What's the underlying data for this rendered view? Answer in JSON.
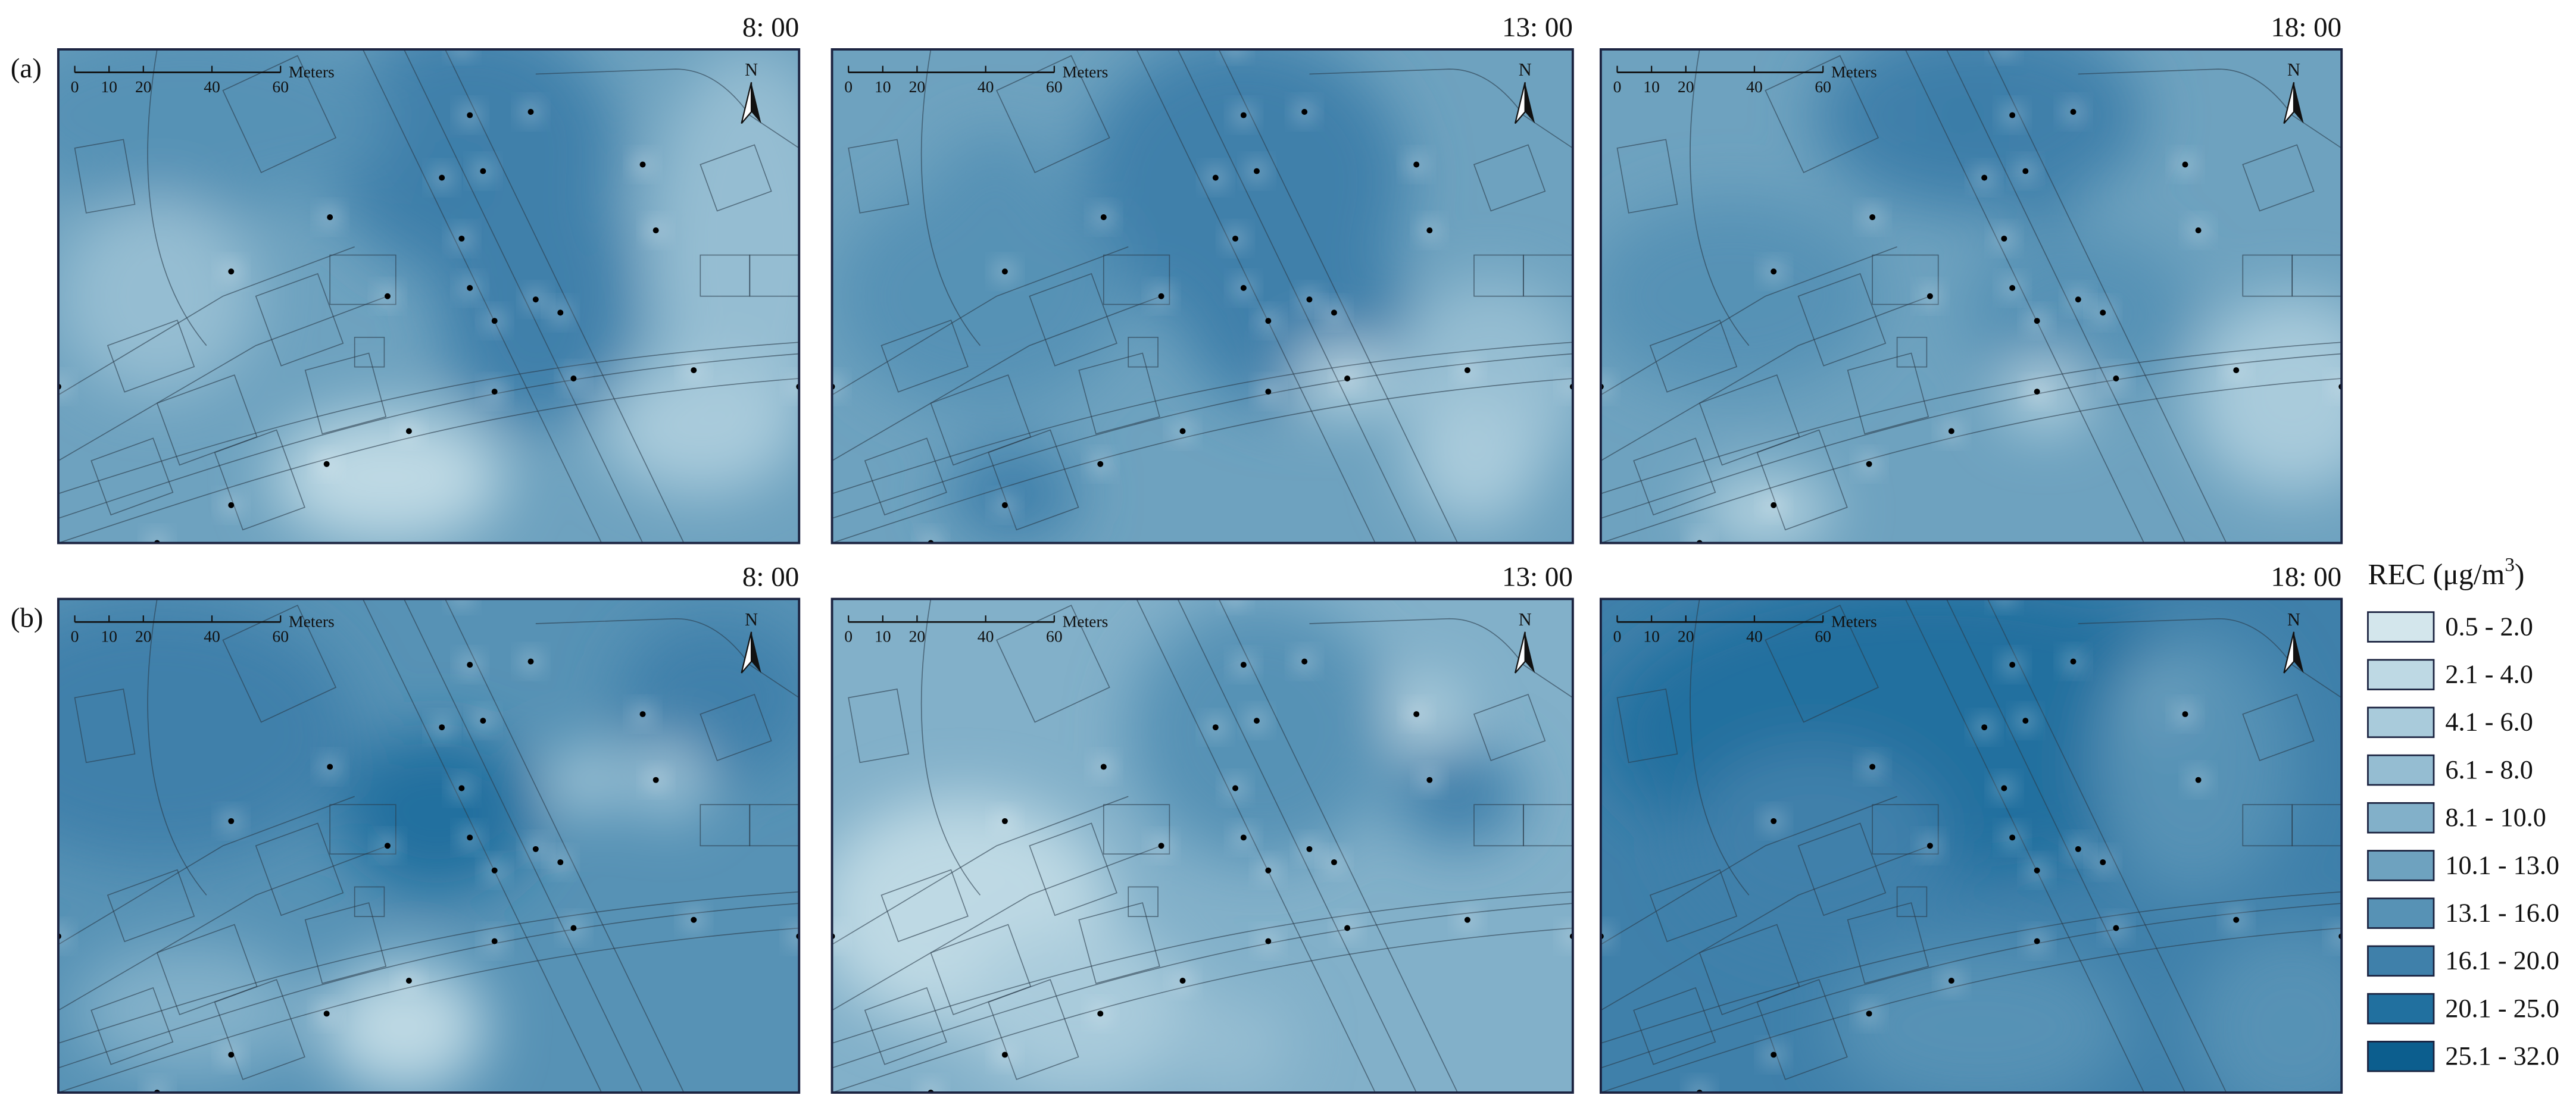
{
  "figure": {
    "rows": [
      {
        "label": "(a)",
        "panels": [
          {
            "time": "8: 00"
          },
          {
            "time": "13: 00"
          },
          {
            "time": "18: 00"
          }
        ]
      },
      {
        "label": "(b)",
        "panels": [
          {
            "time": "8: 00"
          },
          {
            "time": "13: 00"
          },
          {
            "time": "18: 00"
          }
        ]
      }
    ],
    "scale_bar": {
      "ticks": [
        "0",
        "10",
        "20",
        "40",
        "60"
      ],
      "unit": "Meters"
    },
    "north": "N",
    "legend": {
      "title": "REC (μg/m",
      "title_sup": "3",
      "title_close": ")",
      "items": [
        {
          "label": "0.5 - 2.0",
          "color": "#d3e6ec"
        },
        {
          "label": "2.1 - 4.0",
          "color": "#bed9e4"
        },
        {
          "label": "4.1 - 6.0",
          "color": "#a9cbdb"
        },
        {
          "label": "6.1 - 8.0",
          "color": "#95bdd2"
        },
        {
          "label": "8.1 - 10.0",
          "color": "#82b0c9"
        },
        {
          "label": "10.1 - 13.0",
          "color": "#6ea2bf"
        },
        {
          "label": "13.1 - 16.0",
          "color": "#5792b5"
        },
        {
          "label": "16.1 - 20.0",
          "color": "#3f80aa"
        },
        {
          "label": "20.1 - 25.0",
          "color": "#21709f"
        },
        {
          "label": "25.1 - 32.0",
          "color": "#0c5e8e"
        }
      ]
    }
  }
}
